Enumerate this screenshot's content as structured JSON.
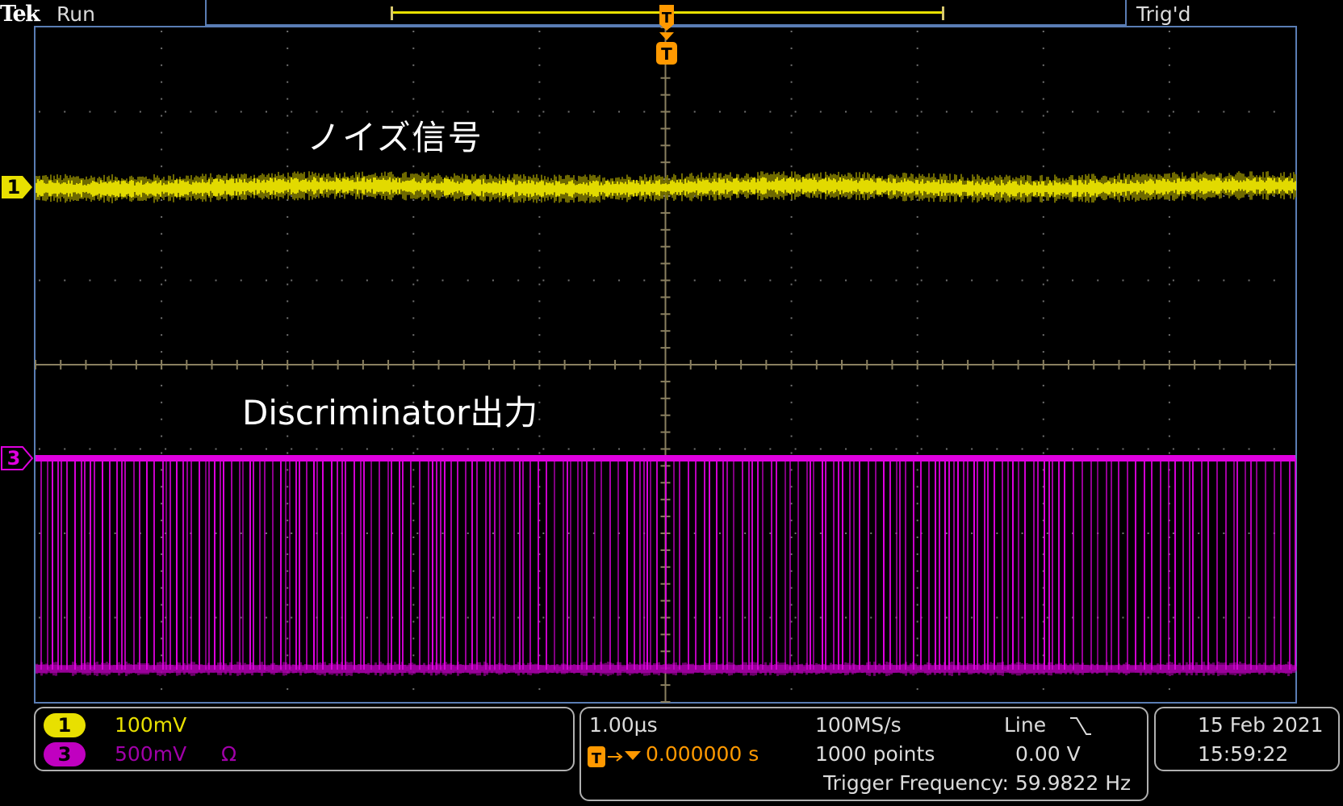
{
  "header": {
    "brand": "Tek",
    "run_state": "Run",
    "trigger_state": "Trig'd"
  },
  "annotations": {
    "noise_label": "ノイズ信号",
    "discriminator_label": "Discriminator出力"
  },
  "markers": {
    "trigger_letter": "T",
    "ch1_label": "1",
    "ch3_label": "3"
  },
  "channels": [
    {
      "id": "1",
      "scale": "100mV",
      "coupling": "",
      "color": "#e8e000"
    },
    {
      "id": "3",
      "scale": "500mV",
      "coupling": "Ω",
      "color": "#e000e0"
    }
  ],
  "timebase": {
    "horizontal_scale": "1.00µs",
    "trigger_position": "0.000000 s",
    "sample_rate": "100MS/s",
    "record_length": "1000 points",
    "trigger_source": "Line",
    "trigger_slope_icon": "falling-edge-icon",
    "trigger_level": "0.00 V",
    "trigger_frequency": "Trigger Frequency: 59.9822 Hz"
  },
  "datetime": {
    "date": "15 Feb  2021",
    "time": "15:59:22"
  },
  "colors": {
    "ch1": "#e8e000",
    "ch3": "#e000e0",
    "trigger": "#ff9900",
    "graticule": "#5a7db4",
    "grid_dots": "#707070"
  }
}
